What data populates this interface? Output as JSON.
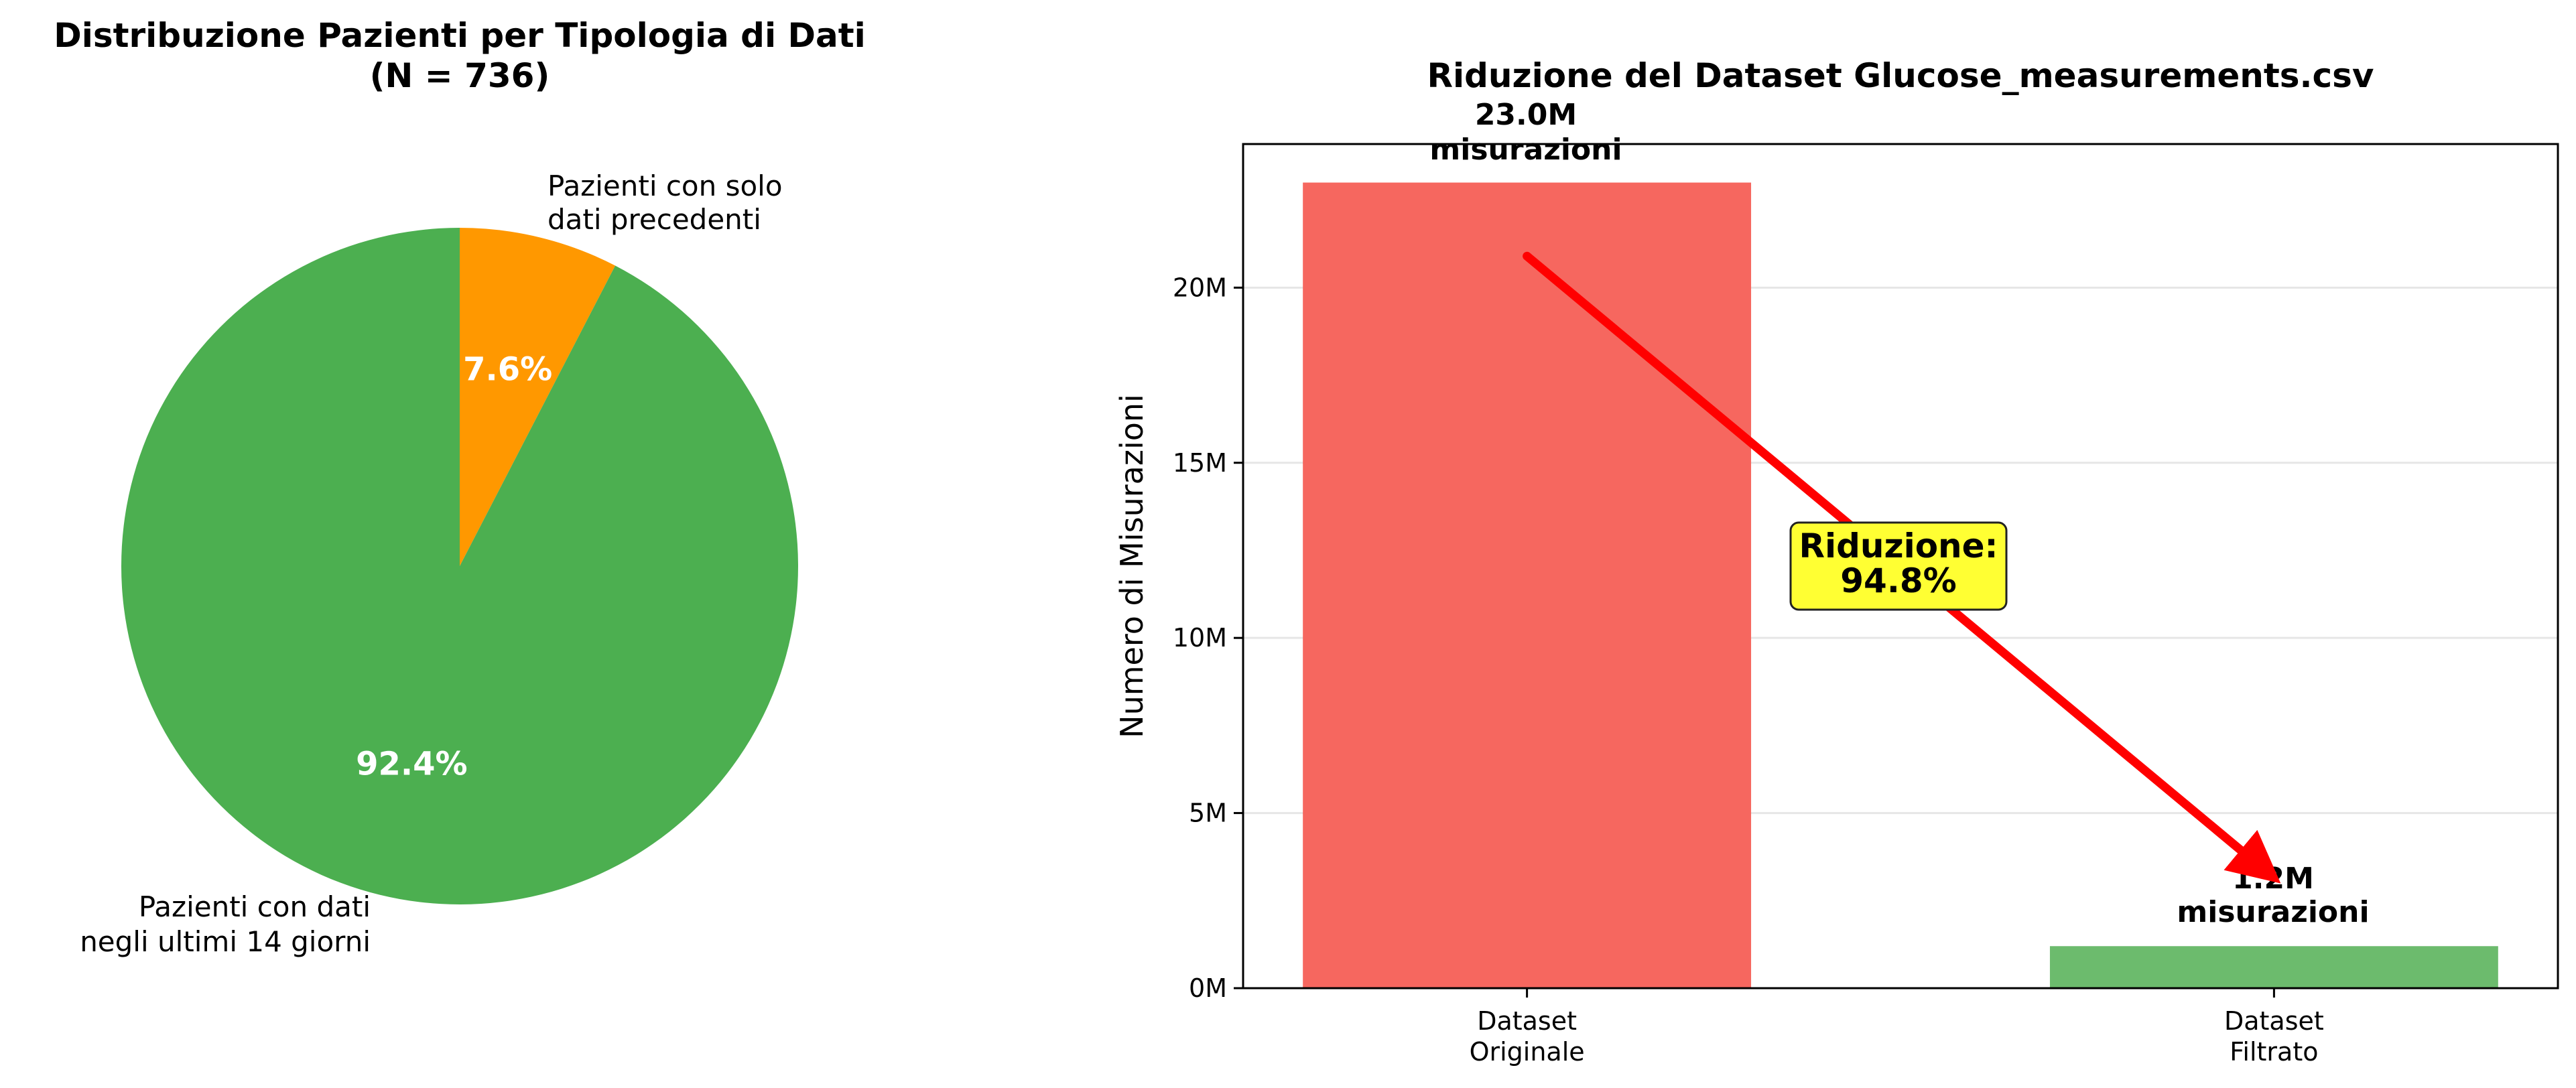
{
  "chart_data": [
    {
      "type": "pie",
      "title": [
        "Distribuzione Pazienti per Tipologia di Dati",
        "(N = 736)"
      ],
      "slices": [
        {
          "label": [
            "Pazienti con solo",
            "dati precedenti"
          ],
          "value": 7.6,
          "pct_label": "7.6%",
          "color": "#ff9800"
        },
        {
          "label": [
            "Pazienti con dati",
            "negli ultimi 14 giorni"
          ],
          "value": 92.4,
          "pct_label": "92.4%",
          "color": "#4caf50"
        }
      ],
      "start_angle_deg": 90,
      "direction": "clockwise"
    },
    {
      "type": "bar",
      "title": "Riduzione del Dataset Glucose_measurements.csv",
      "categories": [
        [
          "Dataset",
          "Originale"
        ],
        [
          "Dataset",
          "Filtrato"
        ]
      ],
      "values": [
        23.0,
        1.2
      ],
      "value_labels": [
        [
          "23.0M",
          "misurazioni"
        ],
        [
          "1.2M",
          "misurazioni"
        ]
      ],
      "colors": [
        "#f6675f",
        "#6cbb6d"
      ],
      "ylabel": "Numero di Misurazioni",
      "ylim": [
        0,
        24.1
      ],
      "yticks": [
        0,
        5,
        10,
        15,
        20
      ],
      "ytick_labels": [
        "0M",
        "5M",
        "10M",
        "15M",
        "20M"
      ],
      "grid": "y",
      "annotation": {
        "text": [
          "Riduzione:",
          "94.8%"
        ],
        "box_color": "#ffff33",
        "arrow_color": "#ff0000",
        "arrow_from": {
          "x": 0,
          "y": 20.9
        },
        "arrow_to": {
          "x": 1,
          "y": 3.2
        }
      }
    }
  ]
}
